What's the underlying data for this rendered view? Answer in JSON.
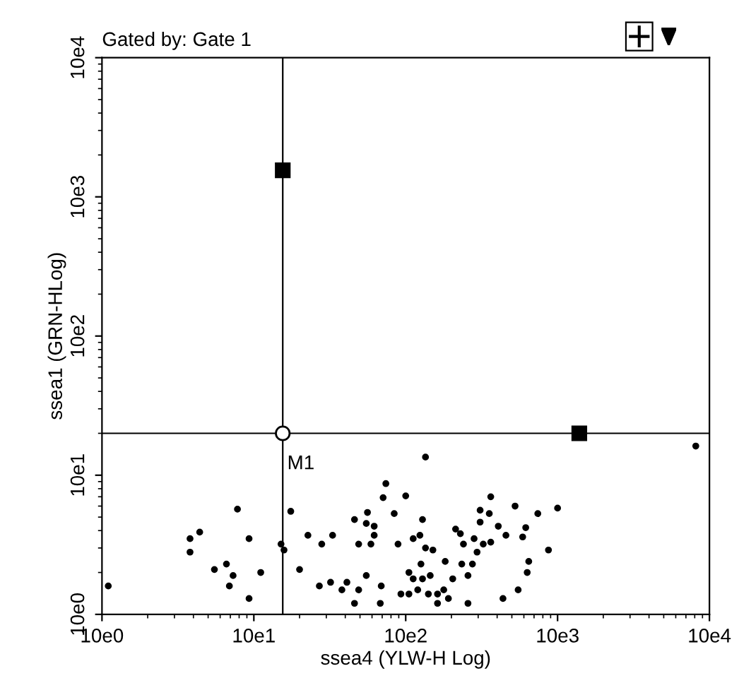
{
  "chart_data": {
    "type": "scatter",
    "title": "Gated by: Gate 1",
    "xlabel": "ssea4 (YLW-H Log)",
    "ylabel": "ssea1 (GRN-HLog)",
    "log": "xy",
    "grid": false,
    "xlim": [
      10,
      100000
    ],
    "ylim": [
      10,
      100000
    ],
    "xticks": [
      {
        "value": 10,
        "label": "10e0"
      },
      {
        "value": 100,
        "label": "10e1"
      },
      {
        "value": 1000,
        "label": "10e2"
      },
      {
        "value": 10000,
        "label": "10e3"
      },
      {
        "value": 100000,
        "label": "10e4"
      }
    ],
    "yticks": [
      {
        "value": 10,
        "label": "10e0"
      },
      {
        "value": 100,
        "label": "10e1"
      },
      {
        "value": 1000,
        "label": "10e2"
      },
      {
        "value": 10000,
        "label": "10e3"
      },
      {
        "value": 100000,
        "label": "10e4"
      }
    ],
    "ref_lines": [
      {
        "axis": "x",
        "value": 155,
        "color": "#000000"
      },
      {
        "axis": "y",
        "value": 200,
        "color": "#000000"
      }
    ],
    "annotations": [
      "M1"
    ],
    "series": [
      {
        "color": "#000000",
        "marker": "circle",
        "x": [
          81300,
          1350,
          740,
          1000,
          3630,
          3090,
          5250,
          10000,
          7410,
          78,
          175,
          840,
          460,
          550,
          620,
          1290,
          3090,
          3550,
          4070,
          2130,
          2290,
          1240,
          1120,
          620,
          590,
          490,
          6170,
          5890,
          4570,
          3630,
          3240,
          2820,
          2400,
          890,
          1350,
          1510,
          2950,
          8710,
          151,
          158,
          38,
          38,
          93,
          44,
          227,
          330,
          280,
          55,
          66,
          73,
          69,
          111,
          93,
          11,
          200,
          270,
          320,
          380,
          410,
          490,
          550,
          690,
          460,
          930,
          1050,
          1200,
          1410,
          1620,
          1780,
          1910,
          2570,
          1050,
          1120,
          1290,
          1450,
          1260,
          1820,
          2040,
          2570,
          2340,
          2750,
          1620,
          5500,
          4370,
          6460,
          6310,
          710,
          680,
          560
        ],
        "values": [
          162,
          135,
          87,
          71,
          70,
          56,
          60,
          58,
          53,
          57,
          55,
          53,
          48,
          45,
          43,
          48,
          46,
          53,
          43,
          41,
          38,
          37,
          35,
          37,
          32,
          32,
          42,
          36,
          37,
          33,
          32,
          35,
          32,
          32,
          30,
          29,
          28,
          29,
          32,
          29,
          35,
          28,
          35,
          39,
          37,
          37,
          32,
          21,
          23,
          19,
          16,
          20,
          13,
          16,
          21,
          16,
          17,
          15,
          17,
          15,
          19,
          16,
          12,
          14,
          14,
          15,
          14,
          14,
          15,
          13,
          12,
          20,
          18,
          18,
          19,
          23,
          24,
          18,
          19,
          23,
          23,
          12,
          15,
          13,
          24,
          20,
          69,
          12,
          54
        ]
      },
      {
        "color": "#000000",
        "marker": "square",
        "x": [
          155,
          13900
        ],
        "values": [
          15500,
          200
        ]
      },
      {
        "color": "#000000",
        "marker": "open circle",
        "x": [
          155
        ],
        "values": [
          200
        ]
      }
    ]
  }
}
